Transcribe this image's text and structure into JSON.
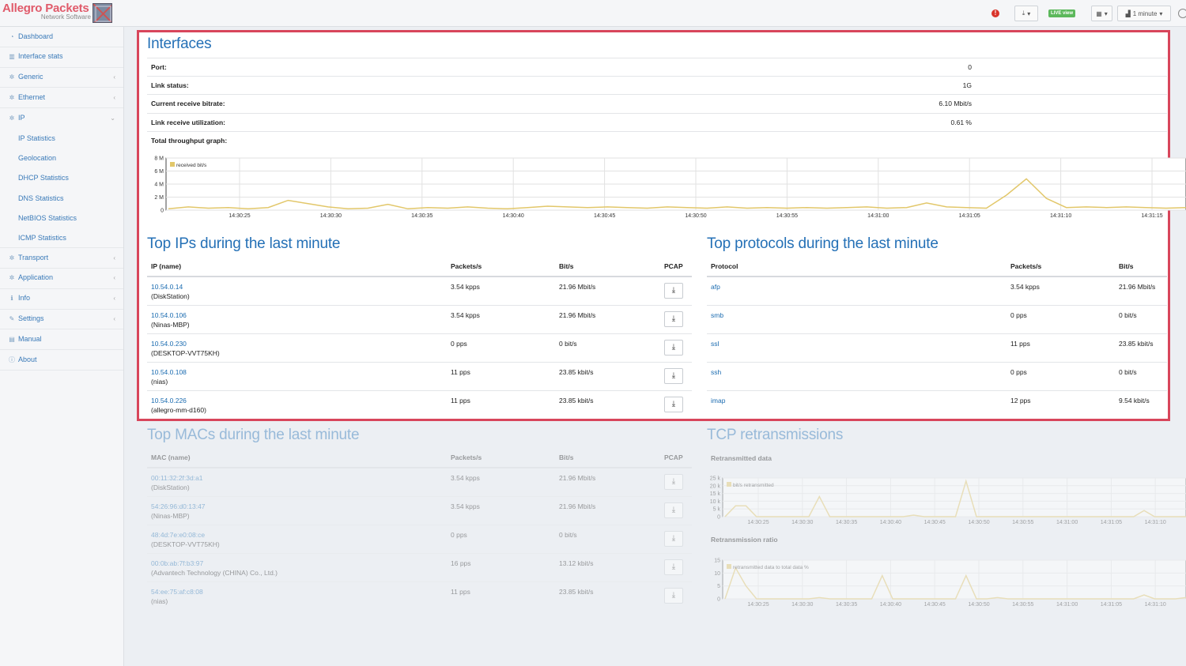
{
  "brand": {
    "name": "Allegro Packets",
    "sub": "Network Software"
  },
  "topbar": {
    "live_label": "LIVE view",
    "interval_label": "1 minute",
    "alert": "!"
  },
  "sidebar": {
    "items": [
      {
        "label": "Dashboard",
        "icon": "dashboard-icon"
      },
      {
        "label": "Interface stats",
        "icon": "chart-icon"
      },
      {
        "label": "Generic",
        "icon": "gear-icon"
      },
      {
        "label": "Ethernet",
        "icon": "gear-icon"
      },
      {
        "label": "IP",
        "icon": "gear-icon"
      }
    ],
    "ip_sub": [
      "IP Statistics",
      "Geolocation",
      "DHCP Statistics",
      "DNS Statistics",
      "NetBIOS Statistics",
      "ICMP Statistics"
    ],
    "items2": [
      {
        "label": "Transport",
        "icon": "gear-icon"
      },
      {
        "label": "Application",
        "icon": "gear-icon"
      },
      {
        "label": "Info",
        "icon": "info-icon"
      },
      {
        "label": "Settings",
        "icon": "wrench-icon"
      },
      {
        "label": "Manual",
        "icon": "book-icon"
      },
      {
        "label": "About",
        "icon": "info-icon"
      }
    ]
  },
  "interfaces": {
    "title": "Interfaces",
    "port_label": "Port:",
    "port_value": "0",
    "link_label": "Link status:",
    "link_value": "1G",
    "bitrate_label": "Current receive bitrate:",
    "bitrate_value": "6.10 Mbit/s",
    "util_label": "Link receive utilization:",
    "util_value": "0.61 %",
    "graph_label": "Total throughput graph:"
  },
  "top_ips": {
    "title": "Top IPs during the last minute",
    "headers": [
      "IP (name)",
      "Packets/s",
      "Bit/s",
      "PCAP"
    ],
    "rows": [
      {
        "ip": "10.54.0.14",
        "name": "(DiskStation)",
        "pps": "3.54 kpps",
        "bps": "21.96 Mbit/s"
      },
      {
        "ip": "10.54.0.106",
        "name": "(Ninas-MBP)",
        "pps": "3.54 kpps",
        "bps": "21.96 Mbit/s"
      },
      {
        "ip": "10.54.0.230",
        "name": "(DESKTOP-VVT75KH)",
        "pps": "0 pps",
        "bps": "0 bit/s"
      },
      {
        "ip": "10.54.0.108",
        "name": "(nias)",
        "pps": "11 pps",
        "bps": "23.85 kbit/s"
      },
      {
        "ip": "10.54.0.226",
        "name": "(allegro-mm-d160)",
        "pps": "11 pps",
        "bps": "23.85 kbit/s"
      }
    ]
  },
  "top_protocols": {
    "title": "Top protocols during the last minute",
    "headers": [
      "Protocol",
      "Packets/s",
      "Bit/s"
    ],
    "rows": [
      {
        "proto": "afp",
        "pps": "3.54 kpps",
        "bps": "21.96 Mbit/s"
      },
      {
        "proto": "smb",
        "pps": "0 pps",
        "bps": "0 bit/s"
      },
      {
        "proto": "ssl",
        "pps": "11 pps",
        "bps": "23.85 kbit/s"
      },
      {
        "proto": "ssh",
        "pps": "0 pps",
        "bps": "0 bit/s"
      },
      {
        "proto": "imap",
        "pps": "12 pps",
        "bps": "9.54 kbit/s"
      }
    ]
  },
  "top_macs": {
    "title": "Top MACs during the last minute",
    "headers": [
      "MAC (name)",
      "Packets/s",
      "Bit/s",
      "PCAP"
    ],
    "rows": [
      {
        "mac": "00:11:32:2f:3d:a1",
        "name": "(DiskStation)",
        "pps": "3.54 kpps",
        "bps": "21.96 Mbit/s"
      },
      {
        "mac": "54:26:96:d0:13:47",
        "name": "(Ninas-MBP)",
        "pps": "3.54 kpps",
        "bps": "21.96 Mbit/s"
      },
      {
        "mac": "48:4d:7e:e0:08:ce",
        "name": "(DESKTOP-VVT75KH)",
        "pps": "0 pps",
        "bps": "0 bit/s"
      },
      {
        "mac": "00:0b:ab:7f:b3:97",
        "name": "(Advantech Technology (CHINA) Co., Ltd.)",
        "pps": "16 pps",
        "bps": "13.12 kbit/s"
      },
      {
        "mac": "54:ee:75:af:c8:08",
        "name": "(nias)",
        "pps": "11 pps",
        "bps": "23.85 kbit/s"
      }
    ]
  },
  "tcp": {
    "title": "TCP retransmissions",
    "data_label": "Retransmitted data",
    "ratio_label": "Retransmission ratio"
  },
  "colors": {
    "accent": "#2470b6",
    "highlight": "#d8465b",
    "series": "#e2c76a"
  },
  "chart_data": [
    {
      "type": "line",
      "title": "",
      "legend": "received bit/s",
      "x_ticks": [
        "14:30:25",
        "14:30:30",
        "14:30:35",
        "14:30:40",
        "14:30:45",
        "14:30:50",
        "14:30:55",
        "14:31:00",
        "14:31:05",
        "14:31:10",
        "14:31:15"
      ],
      "y_ticks": [
        "0",
        "2 M",
        "4 M",
        "6 M",
        "8 M"
      ],
      "ylim": [
        0,
        8000000
      ],
      "values": [
        0.2,
        0.5,
        0.3,
        0.4,
        0.2,
        0.4,
        1.5,
        1.0,
        0.5,
        0.2,
        0.3,
        0.9,
        0.2,
        0.4,
        0.3,
        0.5,
        0.3,
        0.2,
        0.4,
        0.6,
        0.5,
        0.4,
        0.5,
        0.4,
        0.3,
        0.5,
        0.4,
        0.3,
        0.5,
        0.3,
        0.4,
        0.3,
        0.4,
        0.3,
        0.4,
        0.5,
        0.3,
        0.4,
        1.1,
        0.5,
        0.4,
        0.3,
        2.3,
        4.8,
        1.8,
        0.4,
        0.5,
        0.4,
        0.5,
        0.4,
        0.3,
        0.4
      ]
    },
    {
      "type": "line",
      "legend": "bit/s retransmitted",
      "x_ticks": [
        "14:30:25",
        "14:30:30",
        "14:30:35",
        "14:30:40",
        "14:30:45",
        "14:30:50",
        "14:30:55",
        "14:31:00",
        "14:31:05",
        "14:31:10"
      ],
      "y_ticks": [
        "0",
        "5 k",
        "10 k",
        "15 k",
        "20 k",
        "25 k"
      ],
      "ylim": [
        0,
        25000
      ],
      "values": [
        0,
        7000,
        7000,
        0,
        0,
        0,
        0,
        0,
        0,
        13000,
        0,
        0,
        0,
        0,
        0,
        0,
        0,
        0,
        1000,
        0,
        0,
        0,
        0,
        23000,
        0,
        0,
        0,
        0,
        0,
        0,
        0,
        0,
        0,
        0,
        0,
        0,
        0,
        0,
        0,
        0,
        4000,
        0,
        0,
        0,
        0
      ]
    },
    {
      "type": "line",
      "legend": "retransmitted data to total data %",
      "x_ticks": [
        "14:30:25",
        "14:30:30",
        "14:30:35",
        "14:30:40",
        "14:30:45",
        "14:30:50",
        "14:30:55",
        "14:31:00",
        "14:31:05",
        "14:31:10"
      ],
      "y_ticks": [
        "0",
        "5",
        "10",
        "15"
      ],
      "ylim": [
        0,
        15
      ],
      "values": [
        0,
        12,
        5,
        0,
        0,
        0,
        0,
        0,
        0,
        0.5,
        0,
        0,
        0,
        0,
        0,
        9,
        0,
        0,
        0,
        0,
        0,
        0,
        0,
        9,
        0,
        0,
        0.5,
        0,
        0,
        0,
        0,
        0,
        0,
        0,
        0,
        0,
        0,
        0,
        0,
        0,
        1.5,
        0,
        0,
        0,
        0.5
      ]
    }
  ]
}
